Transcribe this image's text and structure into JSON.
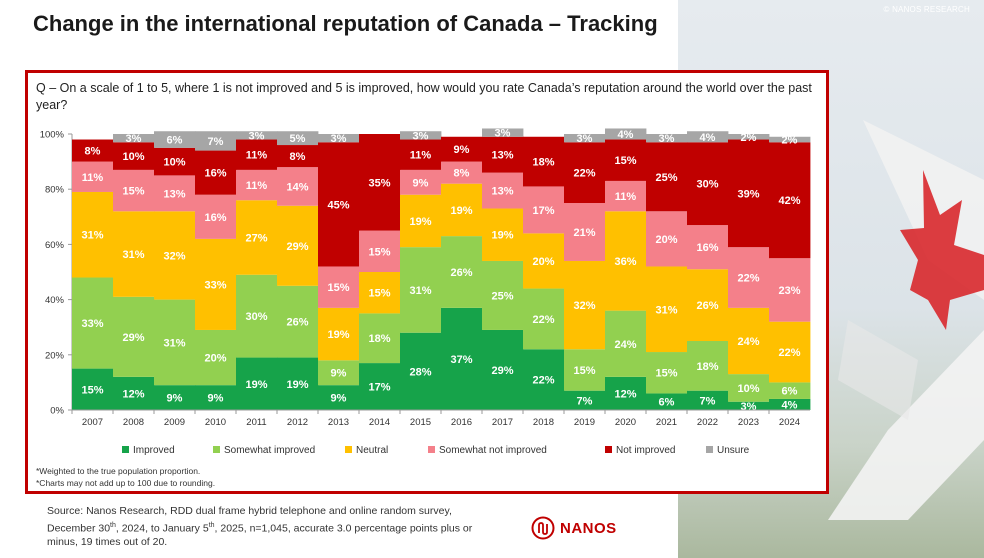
{
  "page": {
    "title": "Change in the international reputation of Canada – Tracking",
    "copyright": "© NANOS RESEARCH",
    "question": "Q – On a scale of 1 to 5, where 1 is not improved and 5 is improved, how would you rate Canada’s reputation around the world over the past year?",
    "footnote1": "*Weighted to the true population proportion.",
    "footnote2": "*Charts may not add up to 100 due to rounding.",
    "source_line1": "Source: Nanos Research, RDD dual frame hybrid  telephone and online random survey,",
    "source_line2_pre": "December 30",
    "source_line2_sup1": "th",
    "source_line2_mid": ", 2024, to January 5",
    "source_line2_sup2": "th",
    "source_line2_post": ", 2025, n=1,045, accurate 3.0 percentage points plus or",
    "source_line3": "minus, 19 times out of 20.",
    "logo_text": "NANOS"
  },
  "colors": {
    "frame": "#c00000",
    "improved": "#16a34a",
    "somewhat_improved": "#92d050",
    "neutral": "#ffc000",
    "somewhat_not_improved": "#f4808a",
    "not_improved": "#c00000",
    "unsure": "#a6a6a6"
  },
  "chart_data": {
    "type": "bar",
    "stacked": true,
    "categories": [
      "2007",
      "2008",
      "2009",
      "2010",
      "2011",
      "2012",
      "2013",
      "2014",
      "2015",
      "2016",
      "2017",
      "2018",
      "2019",
      "2020",
      "2021",
      "2022",
      "2023",
      "2024"
    ],
    "ylim": [
      0,
      100
    ],
    "yticks": [
      "0%",
      "20%",
      "40%",
      "60%",
      "80%",
      "100%"
    ],
    "series": [
      {
        "name": "Improved",
        "color": "#16a34a",
        "values": [
          15,
          12,
          9,
          9,
          19,
          19,
          9,
          17,
          28,
          37,
          29,
          22,
          7,
          12,
          6,
          7,
          3,
          4
        ]
      },
      {
        "name": "Somewhat improved",
        "color": "#92d050",
        "values": [
          33,
          29,
          31,
          20,
          30,
          26,
          9,
          18,
          31,
          26,
          25,
          22,
          15,
          24,
          15,
          18,
          10,
          6
        ]
      },
      {
        "name": "Neutral",
        "color": "#ffc000",
        "values": [
          31,
          31,
          32,
          33,
          27,
          29,
          19,
          15,
          19,
          19,
          19,
          20,
          32,
          36,
          31,
          26,
          24,
          22
        ]
      },
      {
        "name": "Somewhat not improved",
        "color": "#f4808a",
        "values": [
          11,
          15,
          13,
          16,
          11,
          14,
          15,
          15,
          9,
          8,
          13,
          17,
          21,
          11,
          20,
          16,
          22,
          23
        ]
      },
      {
        "name": "Not improved",
        "color": "#c00000",
        "values": [
          8,
          10,
          10,
          16,
          11,
          8,
          45,
          35,
          11,
          9,
          13,
          18,
          22,
          15,
          25,
          30,
          39,
          42
        ]
      },
      {
        "name": "Unsure",
        "color": "#a6a6a6",
        "values": [
          null,
          3,
          6,
          7,
          3,
          5,
          3,
          null,
          3,
          null,
          3,
          null,
          3,
          4,
          3,
          4,
          2,
          2
        ]
      }
    ],
    "legend_position": "bottom"
  }
}
